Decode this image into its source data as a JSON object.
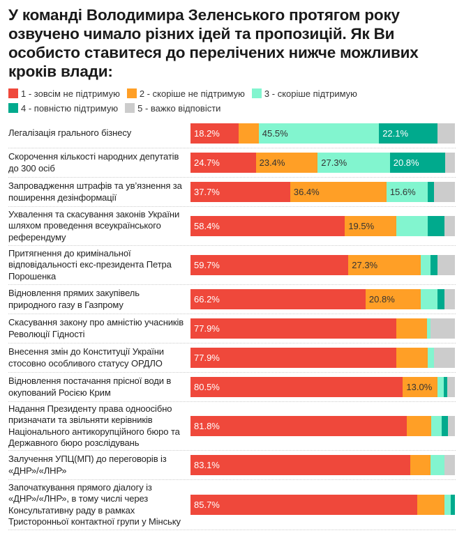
{
  "title": "У команді Володимира Зеленського протягом року озвучено чимало різних ідей та пропозицій. Як Ви особисто ставитеся до перелічених нижче можливих кроків влади:",
  "chart_data": {
    "type": "bar",
    "stacked": true,
    "orientation": "horizontal",
    "xlim": [
      0,
      100
    ],
    "legend_position": "top",
    "series": [
      {
        "name": "1 - зовсім не підтримую",
        "color": "#ef483b",
        "label_color": "#ffffff",
        "values": [
          18.2,
          24.7,
          37.7,
          58.4,
          59.7,
          66.2,
          77.9,
          77.9,
          80.5,
          81.8,
          83.1,
          85.7
        ]
      },
      {
        "name": "2 - скоріше не підтримую",
        "color": "#ff9f26",
        "label_color": "#333333",
        "values": [
          7.6,
          23.4,
          36.4,
          19.5,
          27.3,
          20.8,
          11.8,
          11.8,
          13.0,
          9.1,
          7.7,
          10.3
        ]
      },
      {
        "name": "3 - скоріше підтримую",
        "color": "#82f5cf",
        "label_color": "#333333",
        "values": [
          45.5,
          27.3,
          15.6,
          11.8,
          3.7,
          6.5,
          1.1,
          2.5,
          2.5,
          4.0,
          5.3,
          2.5
        ]
      },
      {
        "name": "4 - повністю підтримую",
        "color": "#00aa8d",
        "label_color": "#ffffff",
        "values": [
          22.1,
          20.8,
          2.5,
          6.4,
          2.8,
          2.5,
          0,
          0,
          1.1,
          2.5,
          0,
          1.5
        ]
      },
      {
        "name": "5 - важко відповісти",
        "color": "#cccccc",
        "label_color": "#333333",
        "values": [
          6.6,
          3.8,
          7.8,
          3.9,
          6.5,
          4.0,
          9.2,
          7.8,
          2.9,
          2.6,
          3.9,
          0
        ]
      }
    ],
    "categories": [
      "Легалізація грального бізнесу",
      "Скорочення кількості народних депутатів до 300 осіб",
      "Запровадження штрафів та ув’язнення за поширення дезінформації",
      "Ухвалення та скасування законів України шляхом проведення всеукраїнського референдуму",
      "Притягнення до кримінальної відповідальності екс-президента Петра Порошенка",
      "Відновлення прямих закупівель природного газу в Газпрому",
      "Скасування закону про амністію учасників Революції Гідності",
      "Внесення змін до Конституції України стосовно особливого статусу ОРДЛО",
      "Відновлення постачання прісної води в окупований Росією Крим",
      "Надання Президенту права одноосібно призначати та звільняти керівників Національного антикорупційного бюро та Державного бюро розслідувань",
      "Залучення УПЦ(МП) до переговорів із «ДНР»/«ЛНР»",
      "Започаткування прямого діалогу із «ДНР»/«ЛНР», в тому числі через Консультативну раду в рамках Тристоронньої контактної групи у Мінську"
    ]
  }
}
